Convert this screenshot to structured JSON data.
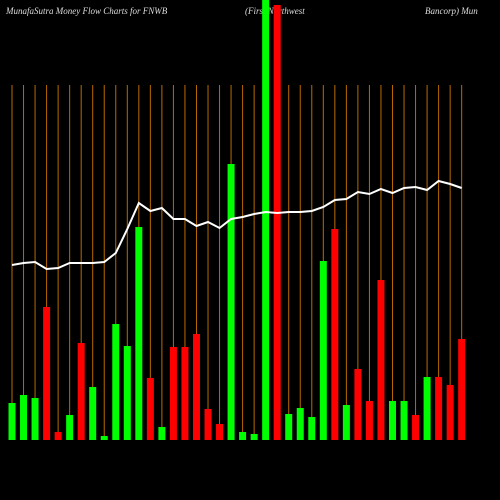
{
  "chart_data": {
    "type": "bar-line",
    "title": "MunafaSutra  Money Flow  Charts for FNWB",
    "subtitle": "(First Northwest",
    "subtitle2": "Bancorp) Mun",
    "ylim": [
      0,
      440
    ],
    "guide_color": "#b86a00",
    "bars": {
      "values": [
        37,
        45,
        42,
        133,
        8,
        25,
        97,
        53,
        4,
        116,
        94,
        213,
        62,
        13,
        93,
        93,
        106,
        31,
        16,
        276,
        8,
        6,
        450,
        435,
        26,
        32,
        23,
        179,
        211,
        35,
        71,
        39,
        160,
        39,
        39,
        25,
        63,
        63,
        55,
        101
      ],
      "colors": [
        "#00ff00",
        "#00ff00",
        "#00ff00",
        "#ff0000",
        "#ff0000",
        "#00ff00",
        "#ff0000",
        "#00ff00",
        "#00ff00",
        "#00ff00",
        "#00ff00",
        "#00ff00",
        "#ff0000",
        "#00ff00",
        "#ff0000",
        "#ff0000",
        "#ff0000",
        "#ff0000",
        "#ff0000",
        "#00ff00",
        "#00ff00",
        "#00ff00",
        "#00ff00",
        "#ff0000",
        "#00ff00",
        "#00ff00",
        "#00ff00",
        "#00ff00",
        "#ff0000",
        "#00ff00",
        "#ff0000",
        "#ff0000",
        "#ff0000",
        "#00ff00",
        "#00ff00",
        "#ff0000",
        "#00ff00",
        "#ff0000",
        "#ff0000",
        "#ff0000"
      ]
    },
    "line": {
      "color": "#ffffff",
      "values": [
        175,
        177,
        178,
        171,
        172,
        177,
        177,
        177,
        178,
        187,
        211,
        237,
        229,
        232,
        221,
        221,
        214,
        218,
        212,
        221,
        223,
        226,
        228,
        227,
        228,
        228,
        229,
        233,
        240,
        241,
        248,
        246,
        251,
        247,
        252,
        253,
        250,
        259,
        256,
        252
      ]
    }
  }
}
